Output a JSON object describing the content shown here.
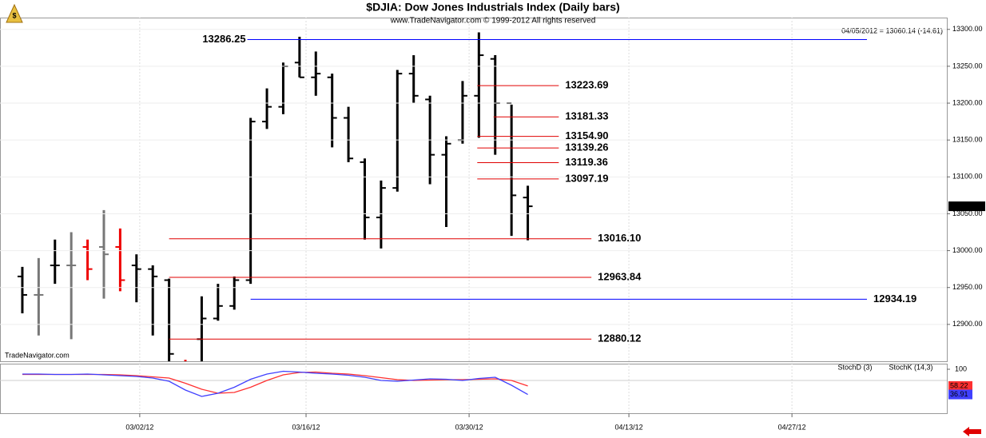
{
  "chart_data": {
    "type": "ohlc",
    "title": "$DJIA:  Dow Jones Industrials Index  (Daily bars)",
    "subtitle": "www.TradeNavigator.com © 1999-2012 All rights reserved",
    "info": "04/05/2012 = 13060.14 (-14.61)",
    "watermark": "TradeNavigator.com",
    "x": [
      0,
      1,
      2,
      3,
      4,
      5,
      6,
      7,
      8,
      9,
      10,
      11,
      12,
      13,
      14,
      15,
      16,
      17,
      18,
      19,
      20,
      21,
      22,
      23,
      24,
      25,
      26,
      27,
      28,
      29,
      30,
      31
    ],
    "open": [
      12965,
      12940,
      12980,
      12980,
      13005,
      13005,
      13005,
      12980,
      12975,
      12960,
      12830,
      12880,
      12908,
      12925,
      12960,
      13175,
      13195,
      13255,
      13235,
      13235,
      13180,
      13120,
      13045,
      13085,
      13240,
      13205,
      13130,
      13150,
      13210,
      13260,
      13200,
      13072
    ],
    "high": [
      12978,
      12990,
      13015,
      13025,
      13015,
      13055,
      13030,
      12995,
      12980,
      12962,
      12852,
      12938,
      12955,
      12965,
      13180,
      13220,
      13255,
      13290,
      13270,
      13240,
      13195,
      13125,
      13095,
      13245,
      13265,
      13210,
      13155,
      13230,
      13296,
      13265,
      13198,
      13088
    ],
    "low": [
      12915,
      12885,
      12955,
      12880,
      12960,
      12935,
      12945,
      12930,
      12885,
      12840,
      12800,
      12845,
      12905,
      12920,
      12955,
      13165,
      13185,
      13235,
      13210,
      13140,
      13120,
      13015,
      13003,
      13080,
      13200,
      13090,
      13032,
      13145,
      13153,
      13130,
      13020,
      13014
    ],
    "close": [
      12940,
      12940,
      12980,
      12980,
      12975,
      12995,
      12960,
      12975,
      12965,
      12860,
      12820,
      12908,
      12925,
      12960,
      13175,
      13195,
      13250,
      13235,
      13240,
      13180,
      13125,
      13045,
      13085,
      13240,
      13210,
      13130,
      13145,
      13210,
      13265,
      13200,
      13075,
      13060.14
    ],
    "colors": [
      "#000",
      "#777",
      "#000",
      "#777",
      "#e00",
      "#777",
      "#e00",
      "#000",
      "#000",
      "#000",
      "#e00",
      "#000",
      "#000",
      "#000",
      "#000",
      "#000",
      "#000",
      "#000",
      "#000",
      "#000",
      "#000",
      "#000",
      "#000",
      "#000",
      "#000",
      "#000",
      "#000",
      "#000",
      "#000",
      "#000",
      "#000",
      "#000"
    ],
    "xlim": [
      -1.37,
      56.7
    ],
    "xticks": [
      {
        "value": 7.2,
        "label": "03/02/12"
      },
      {
        "value": 17.4,
        "label": "03/16/12"
      },
      {
        "value": 27.4,
        "label": "03/30/12"
      },
      {
        "value": 37.2,
        "label": "04/13/12"
      },
      {
        "value": 47.2,
        "label": "04/27/12"
      }
    ],
    "ylim": [
      12850,
      13316
    ],
    "yticks": [
      {
        "value": 12900,
        "label": "12900.00"
      },
      {
        "value": 12950,
        "label": "12950.00"
      },
      {
        "value": 13000,
        "label": "13000.00"
      },
      {
        "value": 13050,
        "label": "13050.00"
      },
      {
        "value": 13100,
        "label": "13100.00"
      },
      {
        "value": 13150,
        "label": "13150.00"
      },
      {
        "value": 13200,
        "label": "13200.00"
      },
      {
        "value": 13250,
        "label": "13250.00"
      },
      {
        "value": 13300,
        "label": "13300.00"
      }
    ],
    "levels": [
      {
        "value": 13286.25,
        "color": "#0000ff",
        "from": 13.8,
        "to": 51.8,
        "label_at": "start"
      },
      {
        "value": 13223.69,
        "color": "#e00000",
        "from": 27.9,
        "to": 32.9,
        "label_at": "end"
      },
      {
        "value": 13181.33,
        "color": "#e00000",
        "from": 28.9,
        "to": 32.9,
        "label_at": "end"
      },
      {
        "value": 13154.9,
        "label": "13154.90",
        "color": "#e00000",
        "from": 27.9,
        "to": 32.9,
        "label_at": "end"
      },
      {
        "value": 13139.26,
        "color": "#e00000",
        "from": 27.9,
        "to": 32.9,
        "label_at": "end"
      },
      {
        "value": 13119.36,
        "color": "#e00000",
        "from": 27.9,
        "to": 32.9,
        "label_at": "end"
      },
      {
        "value": 13097.19,
        "color": "#e00000",
        "from": 27.9,
        "to": 32.9,
        "label_at": "end"
      },
      {
        "value": 13016.1,
        "label": "13016.10",
        "color": "#e00000",
        "from": 9.0,
        "to": 34.9,
        "label_at": "end"
      },
      {
        "value": 12963.84,
        "color": "#e00000",
        "from": 9.0,
        "to": 34.9,
        "label_at": "end"
      },
      {
        "value": 12934.19,
        "color": "#0000ff",
        "from": 14.0,
        "to": 51.8,
        "label_at": "end"
      },
      {
        "value": 12880.12,
        "color": "#e00000",
        "from": 9.0,
        "to": 34.9,
        "label_at": "end"
      }
    ],
    "indicator": {
      "type": "line",
      "ylim": [
        0,
        100
      ],
      "yticks": [
        100
      ],
      "series": [
        {
          "name": "StochD (3)",
          "color": "#ff3030",
          "values": [
            87,
            87,
            87,
            87,
            87,
            87,
            86,
            84,
            81,
            78,
            65,
            50,
            40,
            42,
            55,
            72,
            86,
            92,
            93,
            90,
            88,
            84,
            79,
            74,
            72,
            73,
            74,
            74,
            75,
            76,
            72,
            58.22
          ]
        },
        {
          "name": "StochK (14,3)",
          "color": "#4040ff",
          "values": [
            88,
            88,
            87,
            87,
            88,
            86,
            84,
            82,
            78,
            70,
            48,
            32,
            40,
            55,
            75,
            88,
            95,
            93,
            90,
            88,
            85,
            80,
            72,
            70,
            73,
            76,
            75,
            72,
            77,
            80,
            60,
            36.91
          ]
        }
      ]
    }
  }
}
